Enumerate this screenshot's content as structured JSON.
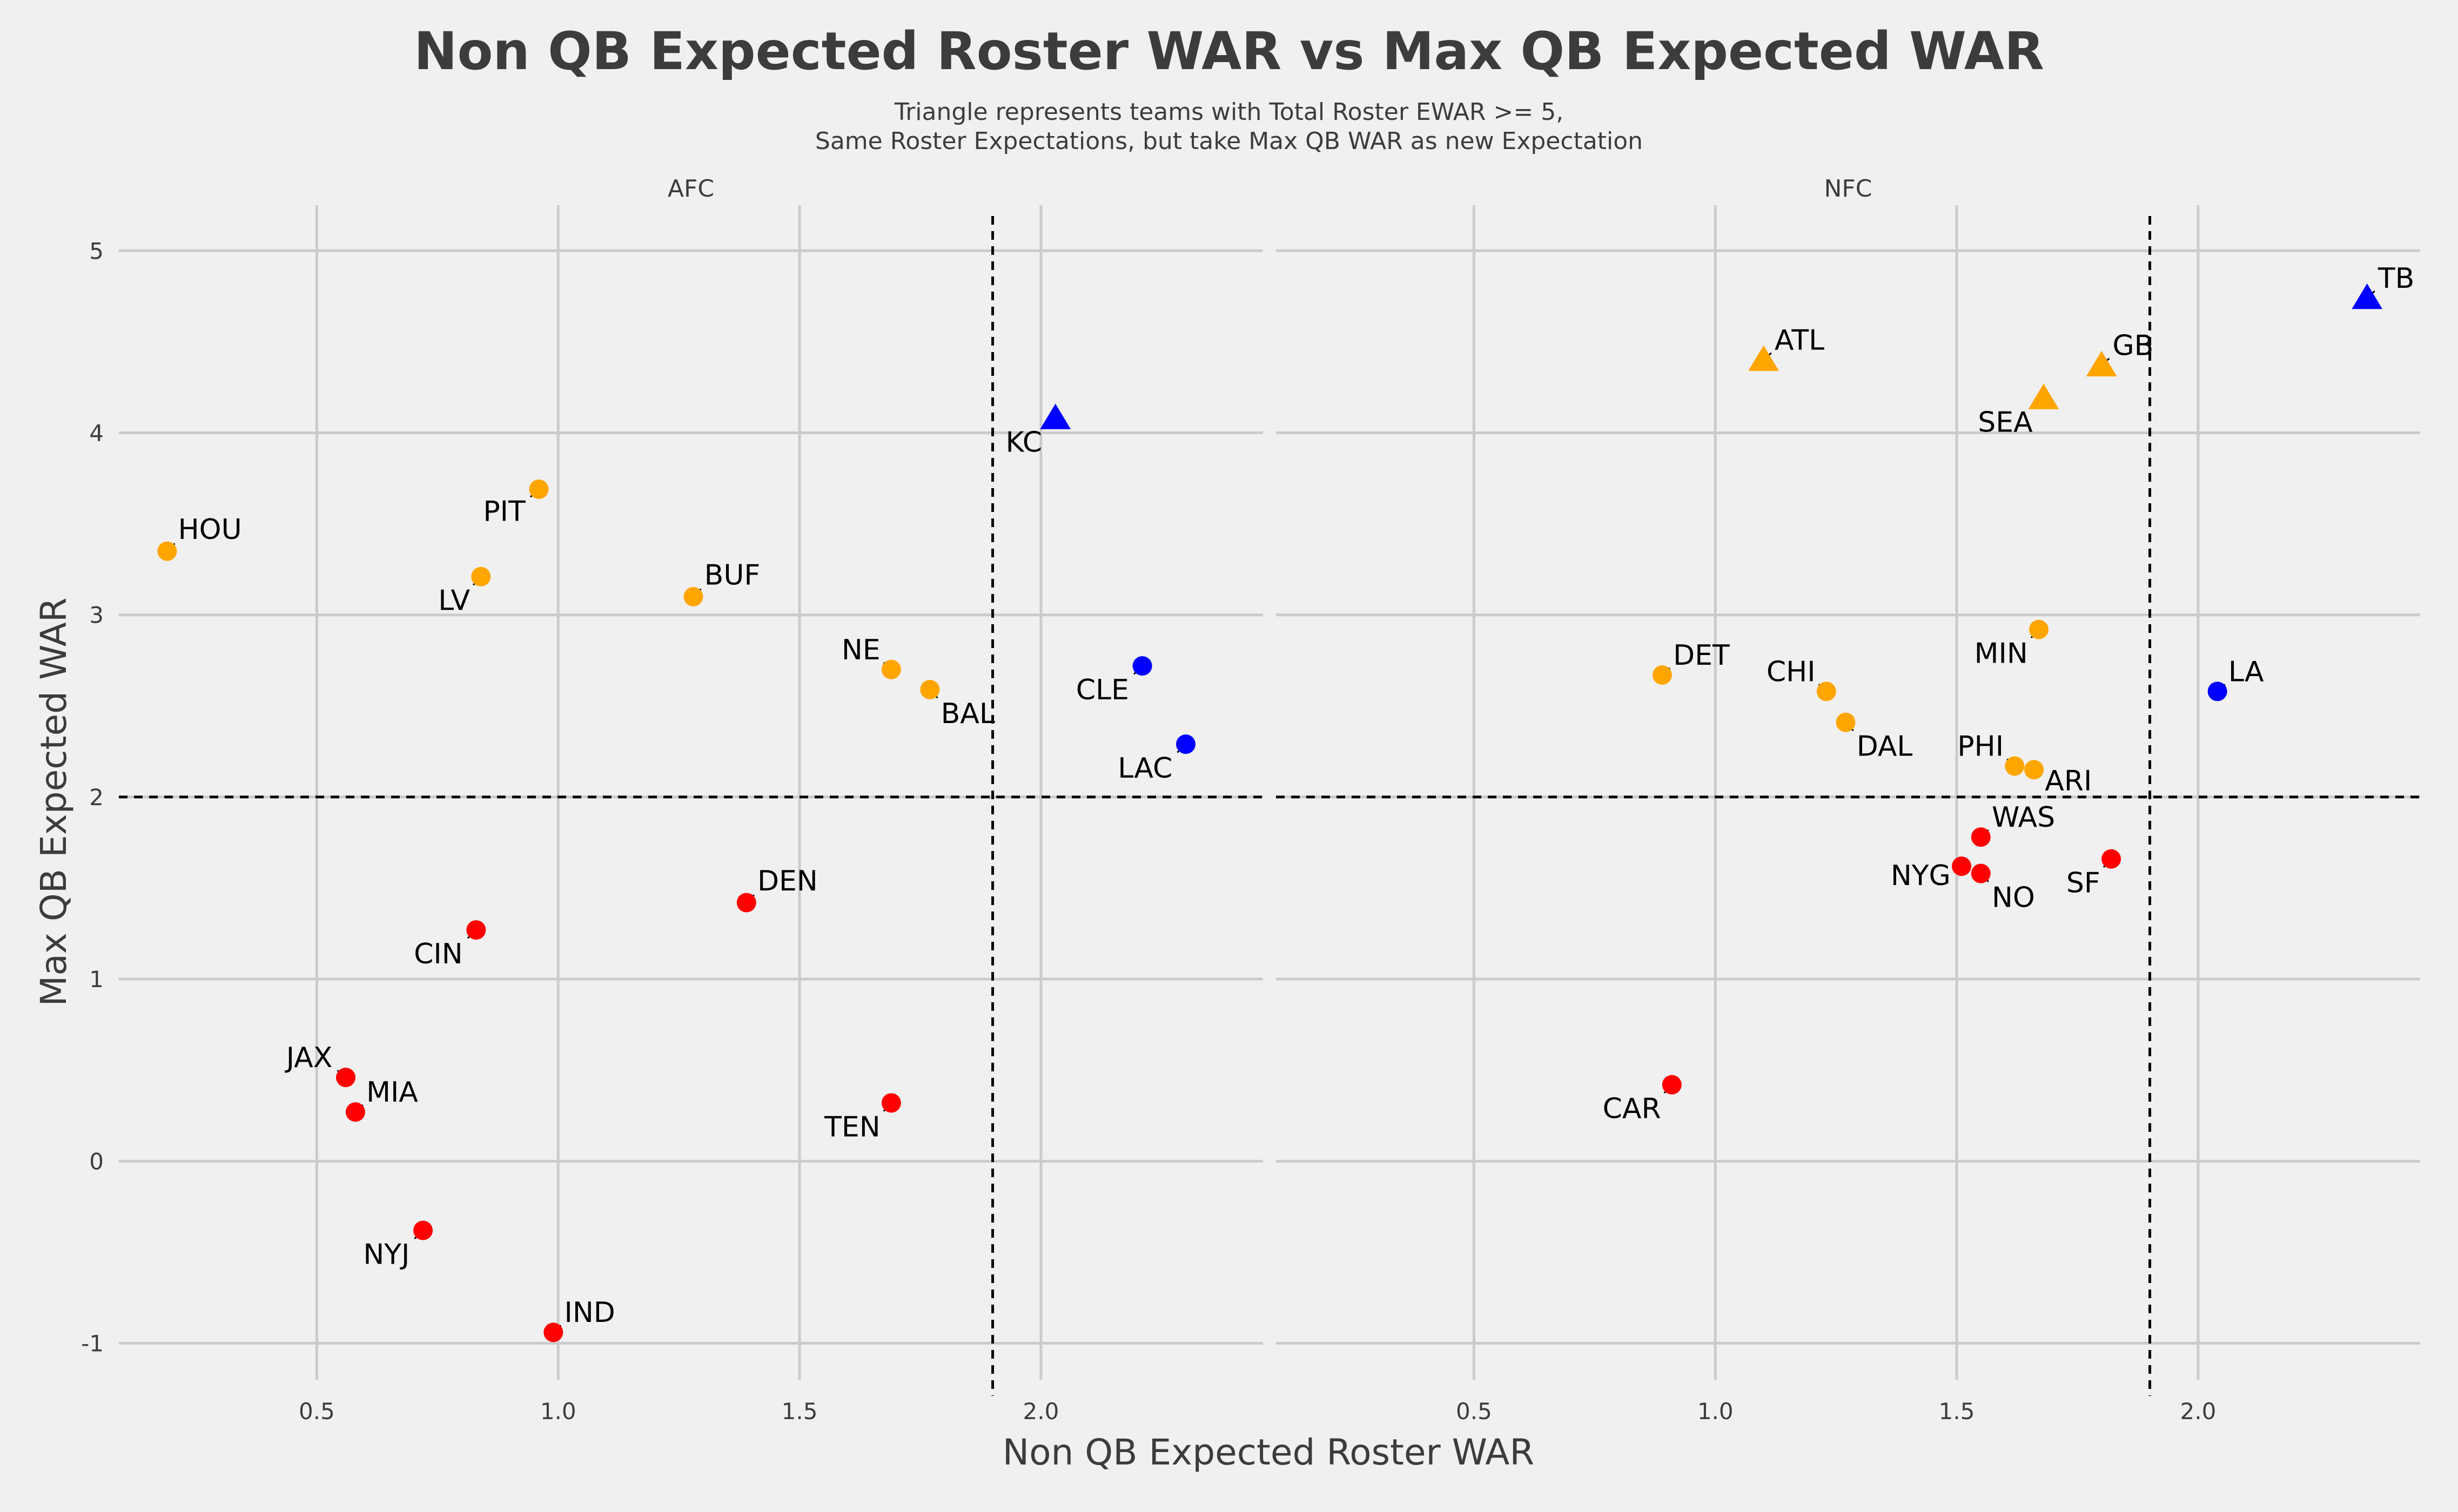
{
  "chart_data": {
    "type": "scatter",
    "title": "Non QB Expected Roster WAR vs Max QB Expected WAR",
    "subtitle_lines": [
      "Triangle represents teams with Total Roster EWAR >= 5,",
      "Same Roster Expectations, but take Max QB WAR as new Expectation"
    ],
    "xlabel": "Non QB Expected Roster WAR",
    "ylabel": "Max QB Expected WAR",
    "xlim": [
      0.09,
      2.46
    ],
    "ylim": [
      -1.2,
      5.25
    ],
    "x_ticks": [
      0.5,
      1.0,
      1.5,
      2.0
    ],
    "x_tick_labels": [
      "0.5",
      "1.0",
      "1.5",
      "2.0"
    ],
    "y_ticks": [
      -1,
      0,
      1,
      2,
      3,
      4,
      5
    ],
    "y_tick_labels": [
      "-1",
      "0",
      "1",
      "2",
      "3",
      "4",
      "5"
    ],
    "reference_lines": {
      "x": 1.9,
      "y": 2
    },
    "colors": {
      "orange": "#FFA500",
      "red": "#FF0000",
      "blue": "#0000FF"
    },
    "facets": [
      {
        "name": "AFC",
        "points": [
          {
            "team": "HOU",
            "x": 0.19,
            "y": 3.35,
            "color": "orange",
            "shape": "circle",
            "label_dx": 0.045,
            "label_dy": 0.12
          },
          {
            "team": "PIT",
            "x": 0.96,
            "y": 3.69,
            "color": "orange",
            "shape": "circle",
            "label_dx": -0.05,
            "label_dy": -0.12
          },
          {
            "team": "LV",
            "x": 0.84,
            "y": 3.21,
            "color": "orange",
            "shape": "circle",
            "label_dx": -0.045,
            "label_dy": -0.13
          },
          {
            "team": "BUF",
            "x": 1.28,
            "y": 3.1,
            "color": "orange",
            "shape": "circle",
            "label_dx": 0.045,
            "label_dy": 0.12
          },
          {
            "team": "NE",
            "x": 1.69,
            "y": 2.7,
            "color": "orange",
            "shape": "circle",
            "label_dx": -0.045,
            "label_dy": 0.11
          },
          {
            "team": "BAL",
            "x": 1.77,
            "y": 2.59,
            "color": "orange",
            "shape": "circle",
            "label_dx": 0.045,
            "label_dy": -0.13
          },
          {
            "team": "KC",
            "x": 2.03,
            "y": 4.08,
            "color": "blue",
            "shape": "triangle",
            "label_dx": -0.05,
            "label_dy": -0.13
          },
          {
            "team": "CLE",
            "x": 2.21,
            "y": 2.72,
            "color": "blue",
            "shape": "circle",
            "label_dx": -0.05,
            "label_dy": -0.13
          },
          {
            "team": "LAC",
            "x": 2.3,
            "y": 2.29,
            "color": "blue",
            "shape": "circle",
            "label_dx": -0.05,
            "label_dy": -0.13
          },
          {
            "team": "DEN",
            "x": 1.39,
            "y": 1.42,
            "color": "red",
            "shape": "circle",
            "label_dx": 0.045,
            "label_dy": 0.12
          },
          {
            "team": "CIN",
            "x": 0.83,
            "y": 1.27,
            "color": "red",
            "shape": "circle",
            "label_dx": -0.05,
            "label_dy": -0.13
          },
          {
            "team": "JAX",
            "x": 0.56,
            "y": 0.46,
            "color": "red",
            "shape": "circle",
            "label_dx": -0.05,
            "label_dy": 0.11
          },
          {
            "team": "MIA",
            "x": 0.58,
            "y": 0.27,
            "color": "red",
            "shape": "circle",
            "label_dx": 0.045,
            "label_dy": 0.11
          },
          {
            "team": "TEN",
            "x": 1.69,
            "y": 0.32,
            "color": "red",
            "shape": "circle",
            "label_dx": -0.045,
            "label_dy": -0.13
          },
          {
            "team": "NYJ",
            "x": 0.72,
            "y": -0.38,
            "color": "red",
            "shape": "circle",
            "label_dx": -0.05,
            "label_dy": -0.13
          },
          {
            "team": "IND",
            "x": 0.99,
            "y": -0.94,
            "color": "red",
            "shape": "circle",
            "label_dx": 0.045,
            "label_dy": 0.11
          }
        ]
      },
      {
        "name": "NFC",
        "points": [
          {
            "team": "TB",
            "x": 2.35,
            "y": 4.74,
            "color": "blue",
            "shape": "triangle",
            "label_dx": 0.045,
            "label_dy": 0.11
          },
          {
            "team": "ATL",
            "x": 1.1,
            "y": 4.4,
            "color": "orange",
            "shape": "triangle",
            "label_dx": 0.045,
            "label_dy": 0.11
          },
          {
            "team": "GB",
            "x": 1.8,
            "y": 4.37,
            "color": "orange",
            "shape": "triangle",
            "label_dx": 0.045,
            "label_dy": 0.11
          },
          {
            "team": "SEA",
            "x": 1.68,
            "y": 4.19,
            "color": "orange",
            "shape": "triangle",
            "label_dx": -0.045,
            "label_dy": -0.13
          },
          {
            "team": "MIN",
            "x": 1.67,
            "y": 2.92,
            "color": "orange",
            "shape": "circle",
            "label_dx": -0.045,
            "label_dy": -0.13
          },
          {
            "team": "DET",
            "x": 0.89,
            "y": 2.67,
            "color": "orange",
            "shape": "circle",
            "label_dx": 0.045,
            "label_dy": 0.11
          },
          {
            "team": "CHI",
            "x": 1.23,
            "y": 2.58,
            "color": "orange",
            "shape": "circle",
            "label_dx": -0.045,
            "label_dy": 0.11
          },
          {
            "team": "DAL",
            "x": 1.27,
            "y": 2.41,
            "color": "orange",
            "shape": "circle",
            "label_dx": 0.045,
            "label_dy": -0.13
          },
          {
            "team": "PHI",
            "x": 1.62,
            "y": 2.17,
            "color": "orange",
            "shape": "circle",
            "label_dx": -0.045,
            "label_dy": 0.11
          },
          {
            "team": "ARI",
            "x": 1.66,
            "y": 2.15,
            "color": "orange",
            "shape": "circle",
            "label_dx": 0.045,
            "label_dy": -0.06
          },
          {
            "team": "LA",
            "x": 2.04,
            "y": 2.58,
            "color": "blue",
            "shape": "circle",
            "label_dx": 0.045,
            "label_dy": 0.11
          },
          {
            "team": "WAS",
            "x": 1.55,
            "y": 1.78,
            "color": "red",
            "shape": "circle",
            "label_dx": 0.045,
            "label_dy": 0.11
          },
          {
            "team": "NYG",
            "x": 1.51,
            "y": 1.62,
            "color": "red",
            "shape": "circle",
            "label_dx": -0.045,
            "label_dy": -0.05
          },
          {
            "team": "NO",
            "x": 1.55,
            "y": 1.58,
            "color": "red",
            "shape": "circle",
            "label_dx": 0.045,
            "label_dy": -0.13
          },
          {
            "team": "SF",
            "x": 1.82,
            "y": 1.66,
            "color": "red",
            "shape": "circle",
            "label_dx": -0.045,
            "label_dy": -0.13
          },
          {
            "team": "CAR",
            "x": 0.91,
            "y": 0.42,
            "color": "red",
            "shape": "circle",
            "label_dx": -0.045,
            "label_dy": -0.13
          }
        ]
      }
    ]
  }
}
